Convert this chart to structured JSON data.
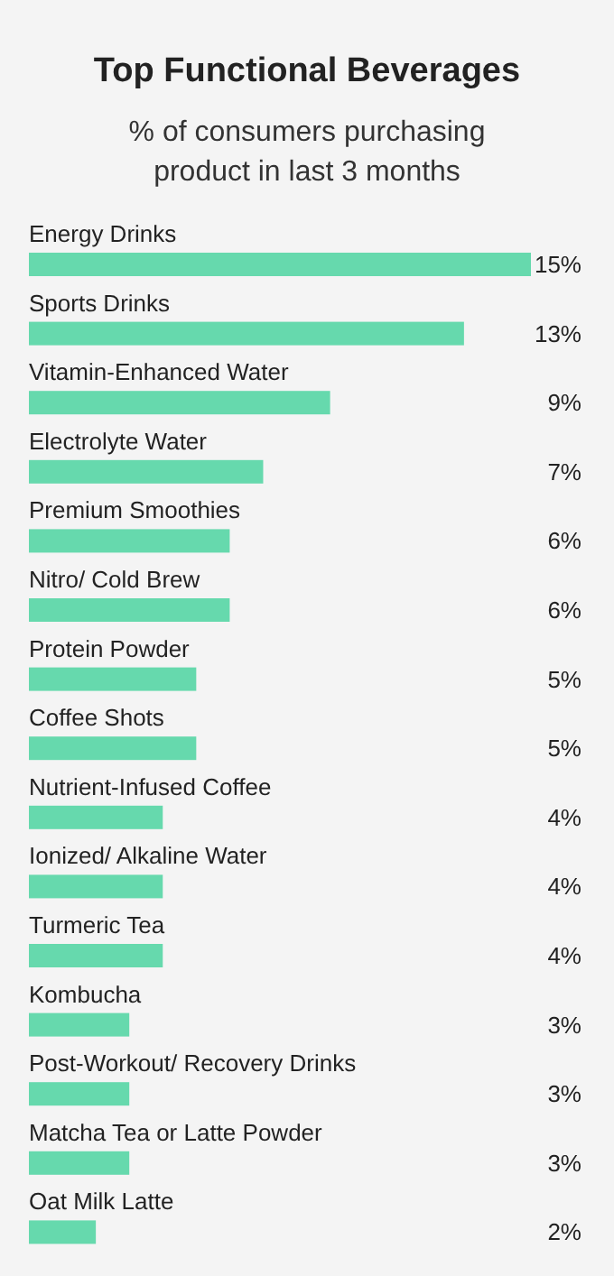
{
  "chart_data": {
    "type": "bar",
    "orientation": "horizontal",
    "title": "Top Functional Beverages",
    "subtitle": "% of consumers purchasing product in last 3 months",
    "categories": [
      "Energy Drinks",
      "Sports Drinks",
      "Vitamin-Enhanced Water",
      "Electrolyte Water",
      "Premium Smoothies",
      "Nitro/ Cold Brew",
      "Protein Powder",
      "Coffee Shots",
      "Nutrient-Infused Coffee",
      "Ionized/ Alkaline Water",
      "Turmeric Tea",
      "Kombucha",
      "Post-Workout/ Recovery Drinks",
      "Matcha Tea or Latte Powder",
      "Oat Milk Latte"
    ],
    "values": [
      15,
      13,
      9,
      7,
      6,
      6,
      5,
      5,
      4,
      4,
      4,
      3,
      3,
      3,
      2
    ],
    "value_labels": [
      "15%",
      "13%",
      "9%",
      "7%",
      "6%",
      "6%",
      "5%",
      "5%",
      "4%",
      "4%",
      "4%",
      "3%",
      "3%",
      "3%",
      "2%"
    ],
    "color": "#66d9ad"
  }
}
